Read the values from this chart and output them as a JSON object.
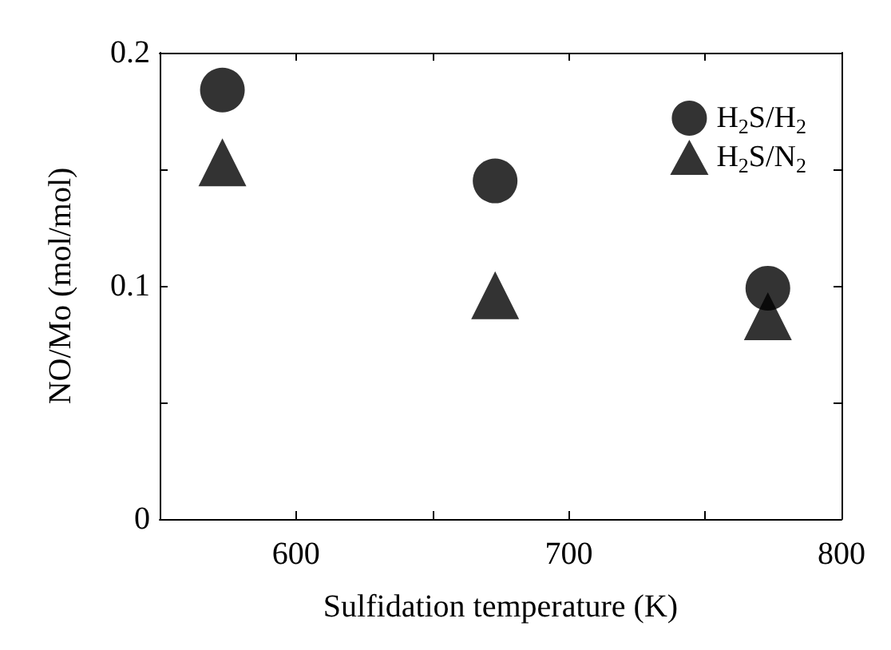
{
  "chart_data": {
    "type": "scatter",
    "xlabel": "Sulfidation temperature (K)",
    "ylabel": "NO/Mo (mol/mol)",
    "xlim": [
      550,
      800
    ],
    "xticks": [
      {
        "value": 550,
        "label": null
      },
      600,
      {
        "value": 650,
        "label": null
      },
      700,
      {
        "value": 750,
        "label": null
      },
      800
    ],
    "ylim": [
      0,
      0.2
    ],
    "yticks": [
      0,
      {
        "value": 0.05,
        "label": null
      },
      0.1,
      {
        "value": 0.15,
        "label": null
      },
      0.2
    ],
    "grid": false,
    "legend": "top right",
    "series": [
      {
        "name": "H$_{2}$S/H$_{2}$",
        "color": "#000000",
        "marker": "circle",
        "x": [
          573,
          673,
          773
        ],
        "values": [
          0.184,
          0.145,
          0.099
        ]
      },
      {
        "name": "H$_{2}$S/N$_{2}$",
        "color": "#000000",
        "marker": "triangle",
        "x": [
          573,
          673,
          773
        ],
        "values": [
          0.153,
          0.096,
          0.087
        ]
      }
    ]
  }
}
